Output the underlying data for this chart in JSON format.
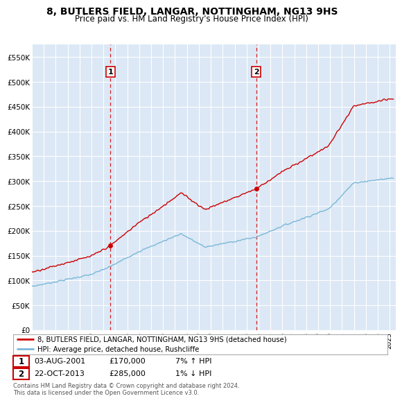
{
  "title": "8, BUTLERS FIELD, LANGAR, NOTTINGHAM, NG13 9HS",
  "subtitle": "Price paid vs. HM Land Registry's House Price Index (HPI)",
  "ylim": [
    0,
    575000
  ],
  "yticks": [
    0,
    50000,
    100000,
    150000,
    200000,
    250000,
    300000,
    350000,
    400000,
    450000,
    500000,
    550000
  ],
  "ytick_labels": [
    "£0",
    "£50K",
    "£100K",
    "£150K",
    "£200K",
    "£250K",
    "£300K",
    "£350K",
    "£400K",
    "£450K",
    "£500K",
    "£550K"
  ],
  "hpi_color": "#7ab8d9",
  "price_color": "#cc0000",
  "bg_color": "#dce8f5",
  "grid_color": "#ffffff",
  "sale1_year": 2001.58,
  "sale1_price": 170000,
  "sale2_year": 2013.8,
  "sale2_price": 285000,
  "legend_line1": "8, BUTLERS FIELD, LANGAR, NOTTINGHAM, NG13 9HS (detached house)",
  "legend_line2": "HPI: Average price, detached house, Rushcliffe",
  "note1_label": "1",
  "note1_date": "03-AUG-2001",
  "note1_price": "£170,000",
  "note1_hpi": "7% ↑ HPI",
  "note2_label": "2",
  "note2_date": "22-OCT-2013",
  "note2_price": "£285,000",
  "note2_hpi": "1% ↓ HPI",
  "footer": "Contains HM Land Registry data © Crown copyright and database right 2024.\nThis data is licensed under the Open Government Licence v3.0."
}
